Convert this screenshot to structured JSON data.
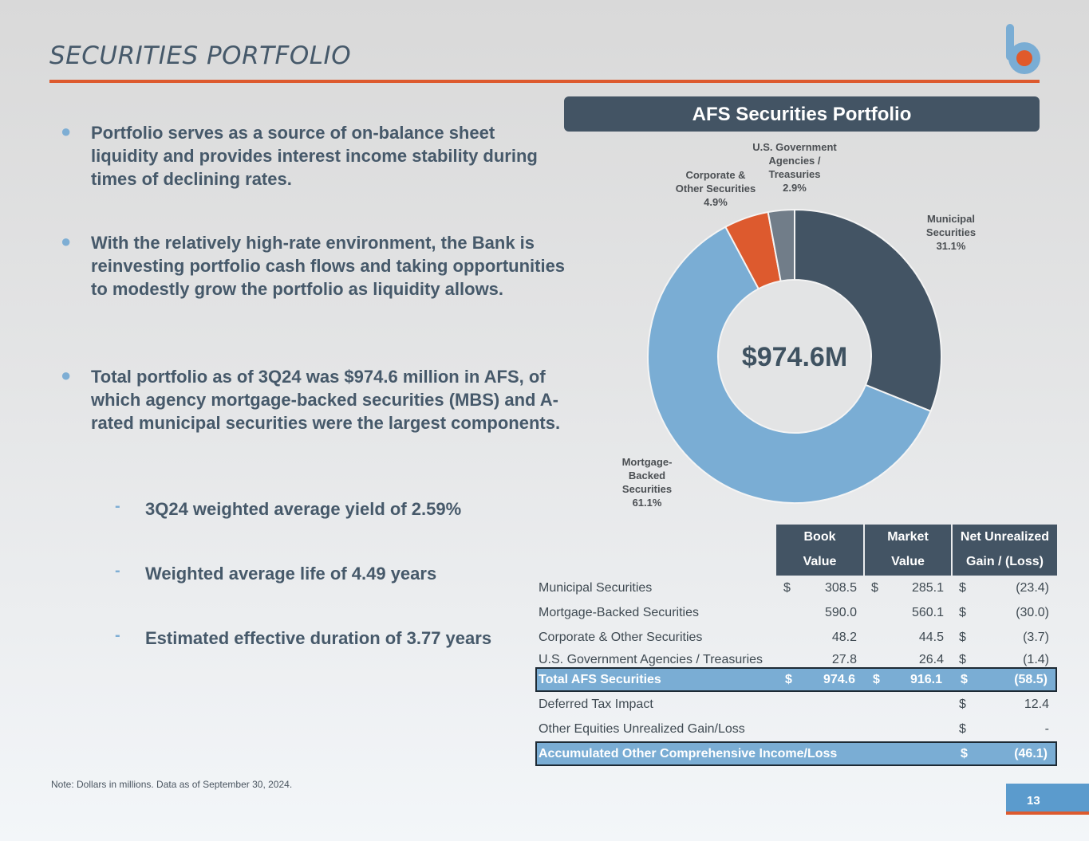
{
  "page": {
    "title": "SECURITIES PORTFOLIO",
    "logo": "bank-b-logo",
    "page_number": "13",
    "note": "Note: Dollars in millions. Data as of September 30, 2024.",
    "colors": {
      "accent_orange": "#dd5a2e",
      "navy": "#435464",
      "light_blue": "#7aadd4",
      "slate_gray": "#717d89"
    }
  },
  "bullets": [
    {
      "icon": "bullet-dot",
      "text": "Portfolio serves as a source of on-balance sheet liquidity and provides interest income stability during times of declining rates."
    },
    {
      "icon": "bullet-dot",
      "text": "With the relatively high-rate environment, the Bank is reinvesting portfolio cash flows and taking opportunities to modestly grow the portfolio as liquidity allows."
    },
    {
      "icon": "bullet-dot",
      "text": "Total portfolio as of 3Q24 was $974.6 million in AFS, of which agency mortgage-backed securities (MBS) and A-rated municipal securities were the largest components."
    }
  ],
  "sub_bullets": [
    {
      "icon": "dash",
      "text": "3Q24 weighted average yield of 2.59%"
    },
    {
      "icon": "dash",
      "text": "Weighted average life of 4.49 years"
    },
    {
      "icon": "dash",
      "text": "Estimated effective duration of 3.77 years"
    }
  ],
  "chart_data": {
    "type": "pie",
    "title": "AFS Securities Portfolio",
    "center_label": "$974.6M",
    "donut": true,
    "start": "12 o'clock, clockwise",
    "slices": [
      {
        "name": "Municipal Securities",
        "label_lines": [
          "Municipal",
          "Securities",
          "31.1%"
        ],
        "value": 31.1,
        "color": "#435464"
      },
      {
        "name": "Mortgage-Backed Securities",
        "label_lines": [
          "Mortgage-",
          "Backed",
          "Securities",
          "61.1%"
        ],
        "value": 61.1,
        "color": "#7aadd4"
      },
      {
        "name": "Corporate & Other Securities",
        "label_lines": [
          "Corporate &",
          "Other Securities",
          "4.9%"
        ],
        "value": 4.9,
        "color": "#dd5a2e"
      },
      {
        "name": "U.S. Government Agencies / Treasuries",
        "label_lines": [
          "U.S. Government",
          "Agencies /",
          "Treasuries",
          "2.9%"
        ],
        "value": 2.9,
        "color": "#717d89"
      }
    ]
  },
  "table": {
    "headers": [
      {
        "line1": "Book",
        "line2": "Value"
      },
      {
        "line1": "Market",
        "line2": "Value"
      },
      {
        "line1": "Net Unrealized",
        "line2": "Gain / (Loss)"
      }
    ],
    "rows": [
      {
        "label": "Municipal Securities",
        "book_dollar": "$",
        "book": "308.5",
        "market_dollar": "$",
        "market": "285.1",
        "gain_dollar": "$",
        "gain": "(23.4)",
        "total": false
      },
      {
        "label": "Mortgage-Backed Securities",
        "book_dollar": "",
        "book": "590.0",
        "market_dollar": "",
        "market": "560.1",
        "gain_dollar": "$",
        "gain": "(30.0)",
        "total": false
      },
      {
        "label": "Corporate & Other Securities",
        "book_dollar": "",
        "book": "48.2",
        "market_dollar": "",
        "market": "44.5",
        "gain_dollar": "$",
        "gain": "(3.7)",
        "total": false
      },
      {
        "label": "U.S. Government Agencies / Treasuries",
        "book_dollar": "",
        "book": "27.8",
        "market_dollar": "",
        "market": "26.4",
        "gain_dollar": "$",
        "gain": "(1.4)",
        "total": false
      },
      {
        "label": "Total AFS Securities",
        "book_dollar": "$",
        "book": "974.6",
        "market_dollar": "$",
        "market": "916.1",
        "gain_dollar": "$",
        "gain": "(58.5)",
        "total": true
      },
      {
        "label": "Deferred Tax Impact",
        "book_dollar": "",
        "book": "",
        "market_dollar": "",
        "market": "",
        "gain_dollar": "$",
        "gain": "12.4",
        "total": false
      },
      {
        "label": "Other Equities Unrealized Gain/Loss",
        "book_dollar": "",
        "book": "",
        "market_dollar": "",
        "market": "",
        "gain_dollar": "$",
        "gain": "-",
        "total": false
      },
      {
        "label": "Accumulated Other Comprehensive Income/Loss",
        "book_dollar": "",
        "book": "",
        "market_dollar": "",
        "market": "",
        "gain_dollar": "$",
        "gain": "(46.1)",
        "total": true
      }
    ]
  }
}
